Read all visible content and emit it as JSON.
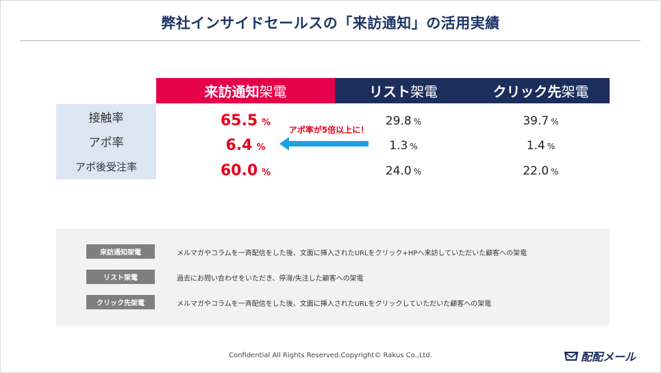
{
  "title": "弊社インサイドセールスの「来訪通知」の活用実績",
  "columns": [
    {
      "main": "来訪通知",
      "suffix": "架電"
    },
    {
      "main": "リスト",
      "suffix": "架電"
    },
    {
      "main": "クリック先",
      "suffix": "架電"
    }
  ],
  "rows": [
    {
      "label": "接触率",
      "values": [
        "65.5",
        "29.8",
        "39.7"
      ],
      "unit": "%"
    },
    {
      "label": "アポ率",
      "values": [
        "6.4",
        "1.3",
        "1.4"
      ],
      "unit": "%"
    },
    {
      "label": "アポ後受注率",
      "values": [
        "60.0",
        "24.0",
        "22.0"
      ],
      "unit": "%"
    }
  ],
  "callout": "アポ率が5倍以上に！",
  "legend": [
    {
      "tag": "来訪通知架電",
      "desc": "メルマガやコラムを一斉配信をした後、文面に挿入されたURLをクリック+HPへ来訪していただいた顧客への架電"
    },
    {
      "tag": "リスト架電",
      "desc": "過去にお問い合わせをいただき、停滞/失注した顧客への架電"
    },
    {
      "tag": "クリック先架電",
      "desc": "メルマガやコラムを一斉配信をした後、文面に挿入されたURLをクリックしていただいた顧客への架電"
    }
  ],
  "footer": "Confidential All Rights Reserved.Copyright© Rakus Co.,Ltd.",
  "logo": "配配メール",
  "colors": {
    "accent": "#e6004c",
    "navy": "#1c2e5c",
    "highlight": "#e6001a",
    "arrow": "#1ba1e2"
  }
}
